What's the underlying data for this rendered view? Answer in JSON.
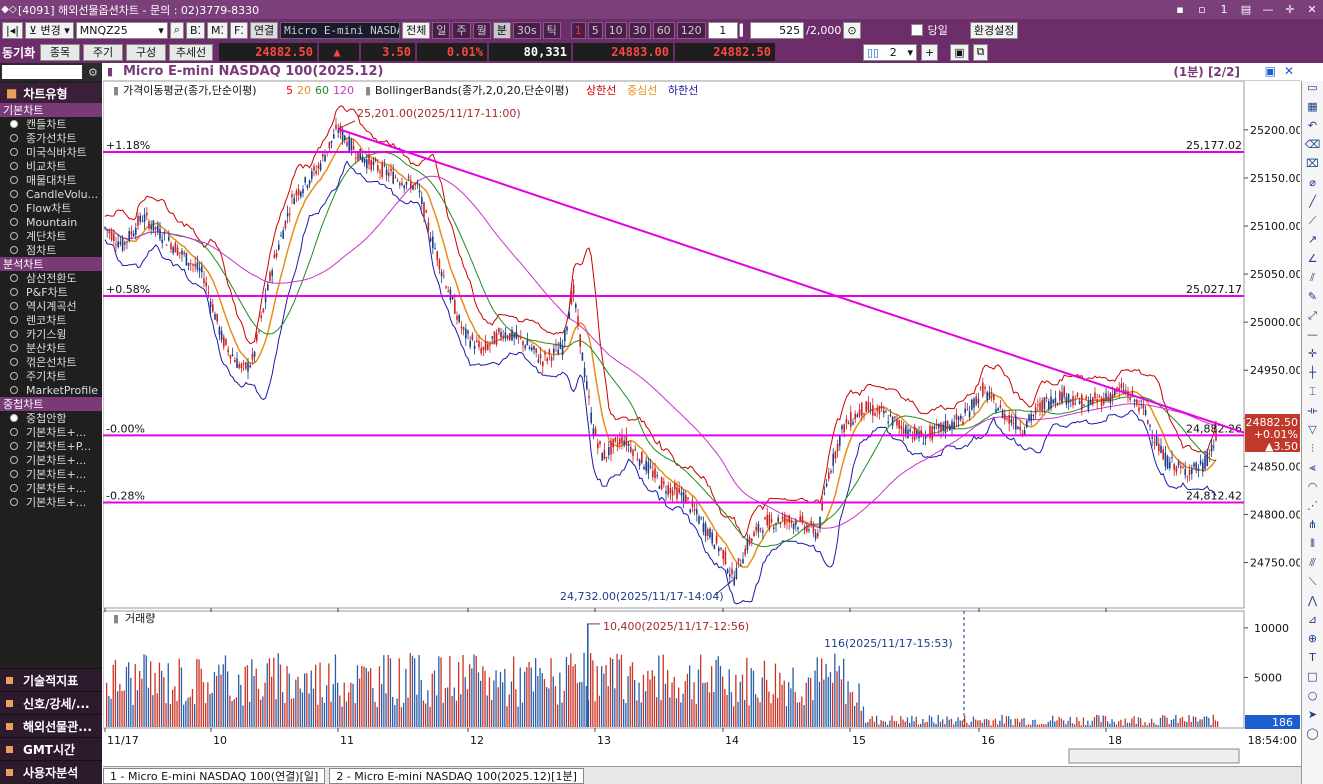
{
  "window": {
    "title": "[4091] 해외선물옵션차트 - 문의 : 02)3779-8330",
    "buttons": [
      "▪",
      "▫",
      "1",
      "▤",
      "—",
      "✛",
      "✕"
    ]
  },
  "toolbar1": {
    "mode": "변경",
    "symbol": "MNQZ25",
    "b_label": "B",
    "m_label": "M",
    "f_label": "F",
    "link": "연결",
    "product_name": "Micro E-mini NASDAQ",
    "all": "전체",
    "periods": [
      "일",
      "주",
      "월",
      "분",
      "30s",
      "틱"
    ],
    "intervals": [
      "1",
      "5",
      "10",
      "30",
      "60",
      "120"
    ],
    "count": "1",
    "display_count": "525",
    "max_count": "/2,000",
    "today": "당일",
    "settings": "환경설정"
  },
  "toolbar2": {
    "sync": "동기화",
    "buttons": [
      "종목",
      "주기",
      "구성",
      "추세선"
    ],
    "price": "24882.50",
    "arrow": "▲",
    "change": "3.50",
    "change_pct": "0.01%",
    "volume": "80,331",
    "ask": "24883.00",
    "bid": "24882.50",
    "layout_count": "2"
  },
  "sidebar": {
    "header": "차트유형",
    "sections": [
      {
        "title": "기본차트",
        "items": [
          "캔들차트",
          "종가선차트",
          "미국식바차트",
          "비교차트",
          "매물대차트",
          "CandleVolu...",
          "Flow차트",
          "Mountain",
          "계단차트",
          "점차트"
        ],
        "selected": 0
      },
      {
        "title": "분석차트",
        "items": [
          "삼선전환도",
          "P&F차트",
          "역시계곡선",
          "렌코차트",
          "카기스윙",
          "분산차트",
          "꺾은선차트",
          "주기차트",
          "MarketProfile"
        ],
        "selected": -1
      },
      {
        "title": "중첩차트",
        "items": [
          "중첩안함",
          "기본차트+...",
          "기본차트+P...",
          "기본차트+...",
          "기본차트+...",
          "기본차트+...",
          "기본차트+..."
        ],
        "selected": 0
      }
    ],
    "bottom": [
      "기술적지표",
      "신호/강세/...",
      "해외선물관...",
      "GMT시간",
      "사용자분석"
    ]
  },
  "chart": {
    "title": "Micro E-mini NASDAQ 100(2025.12)",
    "interval_label": "(1분) [2/2]",
    "legend_ma": "가격이동평균(종가,단순이평)",
    "ma_periods": [
      "5",
      "20",
      "60",
      "120"
    ],
    "legend_bb": "BollingerBands(종가,2,0,20,단순이평)",
    "bb_bands": [
      "상한선",
      "중심선",
      "하한선"
    ],
    "volume_title": "거래량",
    "annotations": {
      "high": "25,201.00(2025/11/17-11:00)",
      "low": "24,732.00(2025/11/17-14:04)",
      "vol_high": "10,400(2025/11/17-12:56)",
      "vol_last": "116(2025/11/17-15:53)"
    },
    "pct_lines": [
      {
        "label": "+1.18%",
        "value": "25,177.02",
        "price": 25177.02
      },
      {
        "label": "+0.58%",
        "value": "25,027.17",
        "price": 25027.17
      },
      {
        "label": "-0.00%",
        "value": "24,882.26",
        "price": 24882.26
      },
      {
        "label": "-0.28%",
        "value": "24,812.42",
        "price": 24812.42
      }
    ],
    "current": {
      "price": "24882.50",
      "pct": "+0.01%",
      "change": "▲3.50"
    },
    "last_volume": "186",
    "time_label": "18:54:00"
  },
  "chart_data": {
    "type": "candlestick",
    "y_ticks": [
      "25200.00",
      "25150.00",
      "25100.00",
      "25050.00",
      "25000.00",
      "24950.00",
      "24900.00",
      "24850.00",
      "24800.00",
      "24750.00"
    ],
    "ylim": [
      24710,
      25230
    ],
    "x_ticks": [
      "11/17",
      "10",
      "11",
      "12",
      "13",
      "14",
      "15",
      "16",
      "18"
    ],
    "close_path": [
      [
        0,
        25100
      ],
      [
        20,
        25080
      ],
      [
        40,
        25110
      ],
      [
        60,
        25090
      ],
      [
        80,
        25070
      ],
      [
        100,
        25050
      ],
      [
        120,
        24980
      ],
      [
        140,
        24950
      ],
      [
        150,
        24960
      ],
      [
        170,
        25060
      ],
      [
        190,
        25130
      ],
      [
        215,
        25160
      ],
      [
        235,
        25201
      ],
      [
        255,
        25175
      ],
      [
        275,
        25160
      ],
      [
        295,
        25150
      ],
      [
        315,
        25140
      ],
      [
        325,
        25100
      ],
      [
        340,
        25050
      ],
      [
        360,
        24990
      ],
      [
        380,
        24970
      ],
      [
        400,
        24990
      ],
      [
        420,
        24980
      ],
      [
        440,
        24960
      ],
      [
        460,
        24975
      ],
      [
        470,
        25035
      ],
      [
        480,
        24960
      ],
      [
        490,
        24890
      ],
      [
        500,
        24860
      ],
      [
        520,
        24880
      ],
      [
        540,
        24855
      ],
      [
        560,
        24830
      ],
      [
        580,
        24820
      ],
      [
        600,
        24790
      ],
      [
        620,
        24760
      ],
      [
        630,
        24732
      ],
      [
        645,
        24770
      ],
      [
        660,
        24790
      ],
      [
        680,
        24795
      ],
      [
        700,
        24790
      ],
      [
        715,
        24780
      ],
      [
        725,
        24840
      ],
      [
        740,
        24890
      ],
      [
        760,
        24910
      ],
      [
        780,
        24905
      ],
      [
        800,
        24890
      ],
      [
        820,
        24880
      ],
      [
        840,
        24890
      ],
      [
        860,
        24900
      ],
      [
        880,
        24930
      ],
      [
        900,
        24905
      ],
      [
        920,
        24890
      ],
      [
        940,
        24915
      ],
      [
        960,
        24925
      ],
      [
        980,
        24915
      ],
      [
        1000,
        24920
      ],
      [
        1020,
        24930
      ],
      [
        1040,
        24910
      ],
      [
        1060,
        24860
      ],
      [
        1080,
        24845
      ],
      [
        1100,
        24850
      ],
      [
        1115,
        24882.5
      ]
    ],
    "trendline": [
      [
        235,
        25201
      ],
      [
        1141,
        24885
      ]
    ],
    "volume_ylim": [
      0,
      11500
    ],
    "volume_ticks": [
      "10000",
      "5000"
    ],
    "volume_high": 10400,
    "volume_last": 186
  }
}
